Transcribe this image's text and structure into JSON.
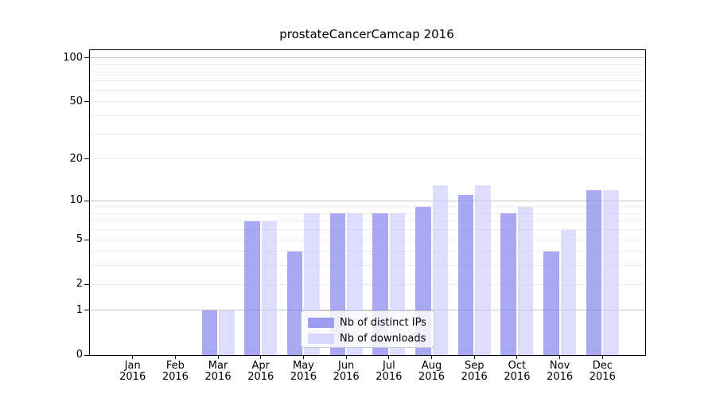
{
  "title": "prostateCancerCamcap 2016",
  "legend": {
    "items": [
      {
        "key": "distinct-ips",
        "label": "Nb of distinct IPs",
        "color": "#8888EE"
      },
      {
        "key": "downloads",
        "label": "Nb of downloads",
        "color": "#CCCCFF"
      }
    ]
  },
  "chart_data": {
    "type": "bar",
    "title": "prostateCancerCamcap 2016",
    "categories": [
      "Jan 2016",
      "Feb 2016",
      "Mar 2016",
      "Apr 2016",
      "May 2016",
      "Jun 2016",
      "Jul 2016",
      "Aug 2016",
      "Sep 2016",
      "Oct 2016",
      "Nov 2016",
      "Dec 2016"
    ],
    "x_tick_labels": [
      {
        "month": "Jan",
        "year": "2016"
      },
      {
        "month": "Feb",
        "year": "2016"
      },
      {
        "month": "Mar",
        "year": "2016"
      },
      {
        "month": "Apr",
        "year": "2016"
      },
      {
        "month": "May",
        "year": "2016"
      },
      {
        "month": "Jun",
        "year": "2016"
      },
      {
        "month": "Jul",
        "year": "2016"
      },
      {
        "month": "Aug",
        "year": "2016"
      },
      {
        "month": "Sep",
        "year": "2016"
      },
      {
        "month": "Oct",
        "year": "2016"
      },
      {
        "month": "Nov",
        "year": "2016"
      },
      {
        "month": "Dec",
        "year": "2016"
      }
    ],
    "series": [
      {
        "name": "Nb of distinct IPs",
        "key": "distinct-ips",
        "color": "#8888EE",
        "fill_opacity": 0.72,
        "values": [
          0,
          0,
          1,
          7,
          4,
          8,
          8,
          9,
          11,
          8,
          4,
          12
        ]
      },
      {
        "name": "Nb of downloads",
        "key": "downloads",
        "color": "#CCCCFF",
        "fill_opacity": 0.66,
        "values": [
          0,
          0,
          1,
          7,
          8,
          8,
          8,
          13,
          13,
          9,
          6,
          12
        ]
      }
    ],
    "xlabel": "",
    "ylabel": "",
    "y_axis": {
      "scale": "log10(1+x)",
      "ticks": [
        100,
        50,
        20,
        10,
        5,
        2,
        1,
        0
      ],
      "major_gridlines": [
        1,
        10,
        100
      ],
      "minor_gridlines": [
        2,
        3,
        4,
        5,
        6,
        7,
        8,
        9,
        20,
        30,
        40,
        50,
        60,
        70,
        80,
        90
      ],
      "ylim": [
        0,
        113
      ]
    },
    "grid": "horizontal",
    "legend_position": "bottom-center",
    "colors": {
      "grid_minor": "#ececec",
      "grid_major": "#c4c4c4",
      "axis": "#000000",
      "background": "#ffffff"
    }
  }
}
